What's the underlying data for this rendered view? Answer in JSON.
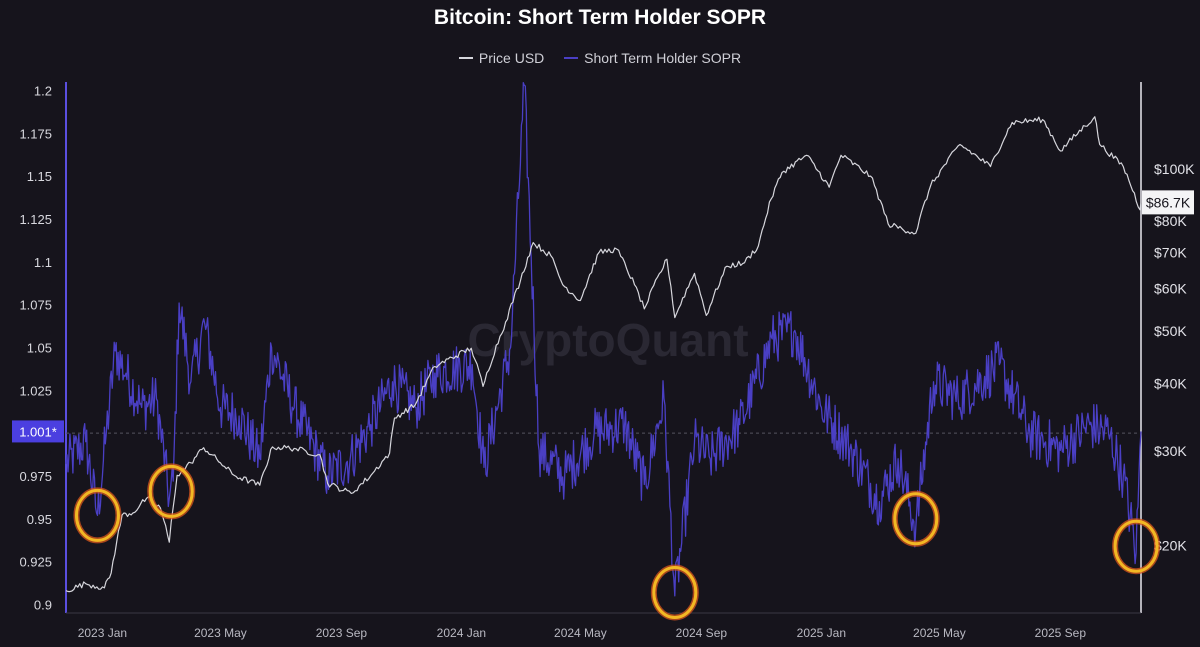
{
  "chart_data": {
    "type": "line",
    "title": "Bitcoin: Short Term Holder SOPR",
    "watermark": "CryptoQuant",
    "x_range": [
      "2022-11-25",
      "2025-11-22"
    ],
    "x_ticks": [
      {
        "date": "2023-01-01",
        "label": "2023 Jan"
      },
      {
        "date": "2023-05-01",
        "label": "2023 May"
      },
      {
        "date": "2023-09-01",
        "label": "2023 Sep"
      },
      {
        "date": "2024-01-01",
        "label": "2024 Jan"
      },
      {
        "date": "2024-05-01",
        "label": "2024 May"
      },
      {
        "date": "2024-09-01",
        "label": "2024 Sep"
      },
      {
        "date": "2025-01-01",
        "label": "2025 Jan"
      },
      {
        "date": "2025-05-01",
        "label": "2025 May"
      },
      {
        "date": "2025-09-01",
        "label": "2025 Sep"
      }
    ],
    "y_left": {
      "min": 0.895,
      "max": 1.205,
      "ticks": [
        {
          "value": 1.2,
          "label": "1.2"
        },
        {
          "value": 1.175,
          "label": "1.175"
        },
        {
          "value": 1.15,
          "label": "1.15"
        },
        {
          "value": 1.125,
          "label": "1.125"
        },
        {
          "value": 1.1,
          "label": "1.1"
        },
        {
          "value": 1.075,
          "label": "1.075"
        },
        {
          "value": 1.05,
          "label": "1.05"
        },
        {
          "value": 1.025,
          "label": "1.025"
        },
        {
          "value": 0.975,
          "label": "0.975"
        },
        {
          "value": 0.95,
          "label": "0.95"
        },
        {
          "value": 0.925,
          "label": "0.925"
        },
        {
          "value": 0.9,
          "label": "0.9"
        }
      ],
      "current_value": 1.001,
      "current_label": "1.001*",
      "reference_line": 1.0
    },
    "y_right": {
      "scale": "log",
      "min": 15000,
      "max": 145000,
      "ticks": [
        {
          "value": 100000,
          "label": "$100K"
        },
        {
          "value": 80000,
          "label": "$80K"
        },
        {
          "value": 70000,
          "label": "$70K"
        },
        {
          "value": 60000,
          "label": "$60K"
        },
        {
          "value": 50000,
          "label": "$50K"
        },
        {
          "value": 40000,
          "label": "$40K"
        },
        {
          "value": 30000,
          "label": "$30K"
        },
        {
          "value": 20000,
          "label": "$20K"
        }
      ],
      "current_value": 86700,
      "current_label": "$86.7K"
    },
    "series": [
      {
        "name": "Price USD",
        "axis": "right",
        "color": "#d6d6dc",
        "points": [
          [
            "2022-11-25",
            16500
          ],
          [
            "2022-12-15",
            17000
          ],
          [
            "2023-01-03",
            16700
          ],
          [
            "2023-01-10",
            17800
          ],
          [
            "2023-01-21",
            22800
          ],
          [
            "2023-02-01",
            23000
          ],
          [
            "2023-02-15",
            24500
          ],
          [
            "2023-03-01",
            23500
          ],
          [
            "2023-03-10",
            20300
          ],
          [
            "2023-03-18",
            27000
          ],
          [
            "2023-04-01",
            28500
          ],
          [
            "2023-04-14",
            30400
          ],
          [
            "2023-05-01",
            28500
          ],
          [
            "2023-05-15",
            27000
          ],
          [
            "2023-06-10",
            25900
          ],
          [
            "2023-06-23",
            30500
          ],
          [
            "2023-07-15",
            30300
          ],
          [
            "2023-08-10",
            29500
          ],
          [
            "2023-08-18",
            26100
          ],
          [
            "2023-09-11",
            25000
          ],
          [
            "2023-10-01",
            27000
          ],
          [
            "2023-10-20",
            29700
          ],
          [
            "2023-10-25",
            34500
          ],
          [
            "2023-11-15",
            36500
          ],
          [
            "2023-12-05",
            43000
          ],
          [
            "2024-01-11",
            46500
          ],
          [
            "2024-01-23",
            39500
          ],
          [
            "2024-02-15",
            52000
          ],
          [
            "2024-03-01",
            62000
          ],
          [
            "2024-03-14",
            73000
          ],
          [
            "2024-04-01",
            69000
          ],
          [
            "2024-04-13",
            61000
          ],
          [
            "2024-05-01",
            57000
          ],
          [
            "2024-05-20",
            70000
          ],
          [
            "2024-06-07",
            71000
          ],
          [
            "2024-06-25",
            61000
          ],
          [
            "2024-07-05",
            55000
          ],
          [
            "2024-07-28",
            68000
          ],
          [
            "2024-08-05",
            53000
          ],
          [
            "2024-08-25",
            64000
          ],
          [
            "2024-09-06",
            53500
          ],
          [
            "2024-09-27",
            66000
          ],
          [
            "2024-10-15",
            67000
          ],
          [
            "2024-10-29",
            72000
          ],
          [
            "2024-11-11",
            88000
          ],
          [
            "2024-11-22",
            98500
          ],
          [
            "2024-12-17",
            106000
          ],
          [
            "2025-01-09",
            92500
          ],
          [
            "2025-01-21",
            106000
          ],
          [
            "2025-02-20",
            97000
          ],
          [
            "2025-03-10",
            79000
          ],
          [
            "2025-04-07",
            76000
          ],
          [
            "2025-04-22",
            93000
          ],
          [
            "2025-05-22",
            111000
          ],
          [
            "2025-06-22",
            101000
          ],
          [
            "2025-07-14",
            122000
          ],
          [
            "2025-08-14",
            123500
          ],
          [
            "2025-09-01",
            108000
          ],
          [
            "2025-10-06",
            125000
          ],
          [
            "2025-10-11",
            111000
          ],
          [
            "2025-11-04",
            101000
          ],
          [
            "2025-11-21",
            84000
          ],
          [
            "2025-11-22",
            86700
          ]
        ]
      },
      {
        "name": "Short Term Holder SOPR",
        "axis": "left",
        "color": "#4a3fc4",
        "points": [
          [
            "2022-11-25",
            0.982
          ],
          [
            "2022-12-15",
            0.995
          ],
          [
            "2022-12-27",
            0.952
          ],
          [
            "2023-01-05",
            1.0
          ],
          [
            "2023-01-14",
            1.048
          ],
          [
            "2023-01-25",
            1.035
          ],
          [
            "2023-02-10",
            1.015
          ],
          [
            "2023-02-25",
            1.02
          ],
          [
            "2023-03-10",
            0.962
          ],
          [
            "2023-03-14",
            0.972
          ],
          [
            "2023-03-20",
            1.076
          ],
          [
            "2023-04-01",
            1.03
          ],
          [
            "2023-04-15",
            1.064
          ],
          [
            "2023-05-01",
            1.015
          ],
          [
            "2023-05-20",
            1.01
          ],
          [
            "2023-06-10",
            0.985
          ],
          [
            "2023-06-22",
            1.05
          ],
          [
            "2023-07-15",
            1.015
          ],
          [
            "2023-08-18",
            0.975
          ],
          [
            "2023-09-10",
            0.985
          ],
          [
            "2023-10-01",
            1.005
          ],
          [
            "2023-10-23",
            1.03
          ],
          [
            "2023-11-15",
            1.015
          ],
          [
            "2023-12-05",
            1.035
          ],
          [
            "2024-01-12",
            1.04
          ],
          [
            "2024-01-24",
            0.98
          ],
          [
            "2024-02-20",
            1.05
          ],
          [
            "2024-03-05",
            1.203
          ],
          [
            "2024-03-20",
            0.99
          ],
          [
            "2024-04-15",
            0.975
          ],
          [
            "2024-05-15",
            1.0
          ],
          [
            "2024-06-15",
            1.005
          ],
          [
            "2024-07-05",
            0.97
          ],
          [
            "2024-07-25",
            1.02
          ],
          [
            "2024-08-05",
            0.905
          ],
          [
            "2024-08-25",
            0.995
          ],
          [
            "2024-09-10",
            0.985
          ],
          [
            "2024-10-10",
            1.005
          ],
          [
            "2024-11-12",
            1.055
          ],
          [
            "2024-12-05",
            1.06
          ],
          [
            "2025-01-01",
            1.015
          ],
          [
            "2025-02-01",
            0.99
          ],
          [
            "2025-03-01",
            0.96
          ],
          [
            "2025-03-20",
            0.985
          ],
          [
            "2025-04-07",
            0.945
          ],
          [
            "2025-04-25",
            1.03
          ],
          [
            "2025-05-20",
            1.02
          ],
          [
            "2025-07-01",
            1.04
          ],
          [
            "2025-08-01",
            1.0
          ],
          [
            "2025-09-01",
            0.99
          ],
          [
            "2025-10-01",
            1.005
          ],
          [
            "2025-10-20",
            1.0
          ],
          [
            "2025-11-04",
            0.975
          ],
          [
            "2025-11-17",
            0.93
          ],
          [
            "2025-11-22",
            1.001
          ]
        ]
      }
    ],
    "annotations": [
      {
        "type": "circle",
        "date": "2022-12-27",
        "value": 0.952,
        "color": "#f2b824"
      },
      {
        "type": "circle",
        "date": "2023-03-12",
        "value": 0.966,
        "color": "#f2b824"
      },
      {
        "type": "circle",
        "date": "2024-08-05",
        "value": 0.907,
        "color": "#f2b824"
      },
      {
        "type": "circle",
        "date": "2025-04-07",
        "value": 0.95,
        "color": "#f2b824"
      },
      {
        "type": "circle",
        "date": "2025-11-17",
        "value": 0.934,
        "color": "#f2b824"
      }
    ],
    "grid": false,
    "legend_position": "top-center"
  }
}
